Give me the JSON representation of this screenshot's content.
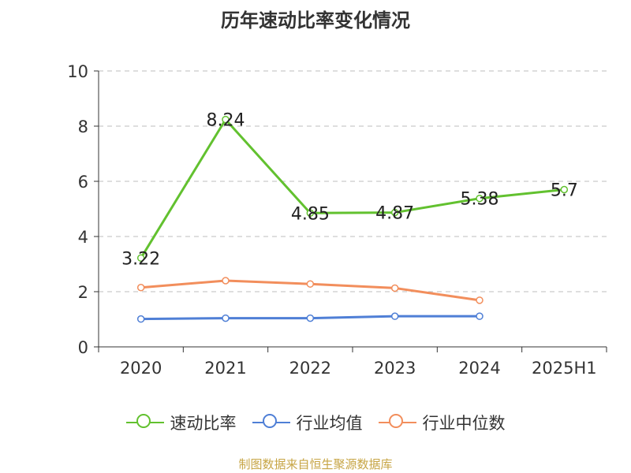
{
  "title": "历年速动比率变化情况",
  "source_note": "制图数据来自恒生聚源数据库",
  "colors": {
    "axis": "#333333",
    "grid": "#bdbdbd"
  },
  "chart_data": {
    "type": "line",
    "categories": [
      "2020",
      "2021",
      "2022",
      "2023",
      "2024",
      "2025H1"
    ],
    "ylim": [
      0,
      10
    ],
    "yticks": [
      0,
      2,
      4,
      6,
      8,
      10
    ],
    "grid": true,
    "legend_position": "bottom",
    "series": [
      {
        "name": "速动比率",
        "color": "#62c12f",
        "values": [
          3.22,
          8.24,
          4.85,
          4.87,
          5.38,
          5.7
        ],
        "labels": [
          "3.22",
          "8.24",
          "4.85",
          "4.87",
          "5.38",
          "5.7"
        ]
      },
      {
        "name": "行业均值",
        "color": "#4f7fd6",
        "values": [
          1.01,
          1.04,
          1.04,
          1.11,
          1.11,
          null
        ]
      },
      {
        "name": "行业中位数",
        "color": "#f28e5c",
        "values": [
          2.15,
          2.4,
          2.28,
          2.13,
          1.69,
          null
        ]
      }
    ]
  }
}
